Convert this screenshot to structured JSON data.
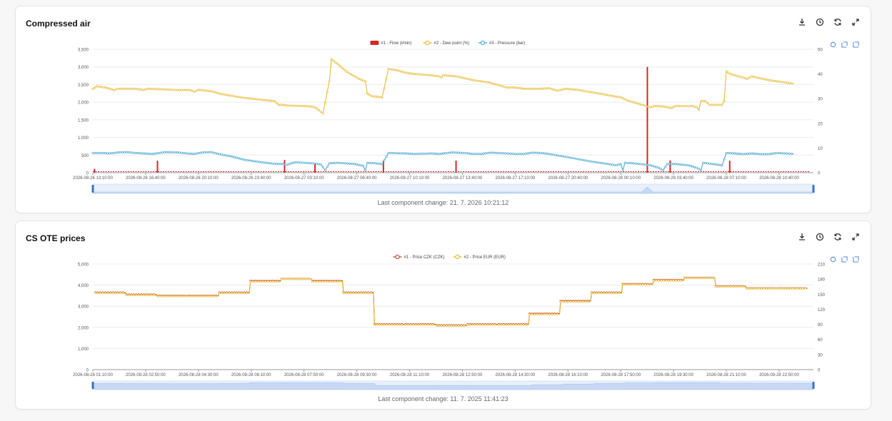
{
  "cards": [
    {
      "title": "Compressed air",
      "footer": "Last component change: 21. 7. 2026 10:21:12"
    },
    {
      "title": "CS OTE prices",
      "footer": "Last component change: 11. 7. 2025 11:41:23"
    }
  ],
  "toolbar_icons": [
    "download-icon",
    "history-icon",
    "refresh-icon",
    "fullscreen-icon"
  ],
  "mini_tool_icons": [
    "restore-icon",
    "zoom-icon",
    "zoom-back-icon"
  ],
  "chart_data": [
    {
      "type": "bar-line",
      "title": "Compressed air",
      "legend_position": "top-center",
      "grid": true,
      "x_ticks": [
        "2026-08-26 13:10:00",
        "2026-08-26 16:40:00",
        "2026-08-26 20:10:00",
        "2026-08-26 23:40:00",
        "2026-08-27 03:10:00",
        "2026-08-27 06:40:00",
        "2026-08-27 10:10:00",
        "2026-08-27 13:40:00",
        "2026-08-27 17:10:00",
        "2026-08-27 20:40:00",
        "2026-08-28 00:10:00",
        "2026-08-28 03:40:00",
        "2026-08-28 07:10:00",
        "2026-08-28 10:40:00"
      ],
      "y_left_ticks": [
        "0",
        "500",
        "1,000",
        "1,500",
        "2,000",
        "2,500",
        "3,000",
        "3,500"
      ],
      "y_left_range": [
        0,
        3500
      ],
      "y_right_ticks": [
        "0",
        "10",
        "20",
        "30",
        "40",
        "50"
      ],
      "y_right_range": [
        0,
        50
      ],
      "series": [
        {
          "name": "#1 - Flow (l/min)",
          "kind": "bar",
          "axis": "left",
          "color": "#d62728",
          "spikes": [
            [
              0.004,
              110
            ],
            [
              0.153,
              340
            ],
            [
              0.454,
              360
            ],
            [
              0.526,
              280
            ],
            [
              0.688,
              340
            ],
            [
              0.86,
              340
            ],
            [
              1.313,
              3000
            ],
            [
              1.367,
              350
            ],
            [
              1.508,
              340
            ]
          ],
          "baseline": 30
        },
        {
          "name": "#2 - Dew point (%)",
          "kind": "line",
          "axis": "right",
          "color": "#e6b422",
          "points": [
            [
              0,
              34
            ],
            [
              0.01,
              35
            ],
            [
              0.03,
              34.5
            ],
            [
              0.05,
              33.5
            ],
            [
              0.06,
              34
            ],
            [
              0.1,
              34
            ],
            [
              0.12,
              33.5
            ],
            [
              0.13,
              34
            ],
            [
              0.2,
              33.5
            ],
            [
              0.23,
              33.5
            ],
            [
              0.24,
              32.8
            ],
            [
              0.25,
              33.6
            ],
            [
              0.28,
              33
            ],
            [
              0.3,
              32
            ],
            [
              0.35,
              30.5
            ],
            [
              0.4,
              29.5
            ],
            [
              0.43,
              29
            ],
            [
              0.44,
              27.5
            ],
            [
              0.45,
              27.5
            ],
            [
              0.46,
              27.2
            ],
            [
              0.5,
              27
            ],
            [
              0.52,
              26.8
            ],
            [
              0.53,
              26
            ],
            [
              0.545,
              24
            ],
            [
              0.56,
              37
            ],
            [
              0.565,
              46
            ],
            [
              0.58,
              44
            ],
            [
              0.6,
              41
            ],
            [
              0.63,
              38
            ],
            [
              0.645,
              37
            ],
            [
              0.65,
              32
            ],
            [
              0.66,
              31
            ],
            [
              0.685,
              30.5
            ],
            [
              0.7,
              42
            ],
            [
              0.72,
              41.5
            ],
            [
              0.74,
              40.5
            ],
            [
              0.76,
              40
            ],
            [
              0.8,
              39.5
            ],
            [
              0.82,
              39
            ],
            [
              0.825,
              38.5
            ],
            [
              0.83,
              39.5
            ],
            [
              0.86,
              39
            ],
            [
              0.9,
              37.5
            ],
            [
              0.94,
              36.5
            ],
            [
              0.96,
              35.5
            ],
            [
              0.98,
              34.5
            ],
            [
              1.0,
              34.5
            ],
            [
              1.02,
              34
            ],
            [
              1.06,
              34
            ],
            [
              1.08,
              34.2
            ],
            [
              1.1,
              33.2
            ],
            [
              1.12,
              34
            ],
            [
              1.15,
              33.5
            ],
            [
              1.2,
              32
            ],
            [
              1.25,
              30.5
            ],
            [
              1.27,
              29
            ],
            [
              1.28,
              28.5
            ],
            [
              1.31,
              27
            ],
            [
              1.32,
              26.5
            ],
            [
              1.33,
              27
            ],
            [
              1.35,
              26.8
            ],
            [
              1.37,
              26.2
            ],
            [
              1.38,
              27
            ],
            [
              1.42,
              27
            ],
            [
              1.43,
              26.5
            ],
            [
              1.435,
              25.5
            ],
            [
              1.44,
              29
            ],
            [
              1.45,
              29
            ],
            [
              1.46,
              27.5
            ],
            [
              1.47,
              27.5
            ],
            [
              1.49,
              27.5
            ],
            [
              1.495,
              29
            ],
            [
              1.5,
              41
            ],
            [
              1.51,
              40
            ],
            [
              1.53,
              39
            ],
            [
              1.55,
              38
            ],
            [
              1.56,
              39
            ],
            [
              1.6,
              37.5
            ],
            [
              1.62,
              37
            ],
            [
              1.64,
              36.5
            ],
            [
              1.66,
              36
            ]
          ]
        },
        {
          "name": "#3 - Pressure (bar)",
          "kind": "line",
          "axis": "right",
          "color": "#3aa0cc",
          "points": [
            [
              0,
              8
            ],
            [
              0.02,
              8
            ],
            [
              0.04,
              7.8
            ],
            [
              0.06,
              8.2
            ],
            [
              0.08,
              8.3
            ],
            [
              0.1,
              8
            ],
            [
              0.12,
              7.8
            ],
            [
              0.14,
              7.6
            ],
            [
              0.15,
              7.8
            ],
            [
              0.17,
              8.3
            ],
            [
              0.2,
              8.2
            ],
            [
              0.23,
              7.7
            ],
            [
              0.24,
              7.6
            ],
            [
              0.26,
              8.2
            ],
            [
              0.28,
              8.3
            ],
            [
              0.3,
              7.5
            ],
            [
              0.33,
              6.5
            ],
            [
              0.36,
              5.2
            ],
            [
              0.4,
              4.2
            ],
            [
              0.43,
              3.6
            ],
            [
              0.45,
              3.5
            ],
            [
              0.46,
              3.2
            ],
            [
              0.47,
              3.8
            ],
            [
              0.48,
              4.2
            ],
            [
              0.52,
              3.8
            ],
            [
              0.54,
              3.3
            ],
            [
              0.55,
              1
            ],
            [
              0.56,
              3.8
            ],
            [
              0.58,
              4
            ],
            [
              0.62,
              3.5
            ],
            [
              0.64,
              2.8
            ],
            [
              0.645,
              1
            ],
            [
              0.65,
              4
            ],
            [
              0.67,
              3.8
            ],
            [
              0.685,
              3.5
            ],
            [
              0.7,
              8
            ],
            [
              0.74,
              7.8
            ],
            [
              0.76,
              7.6
            ],
            [
              0.8,
              7.8
            ],
            [
              0.82,
              7.6
            ],
            [
              0.83,
              7.8
            ],
            [
              0.85,
              8.2
            ],
            [
              0.88,
              8
            ],
            [
              0.9,
              7.6
            ],
            [
              0.92,
              7.6
            ],
            [
              0.94,
              8.1
            ],
            [
              0.96,
              8
            ],
            [
              1.0,
              7.6
            ],
            [
              1.02,
              7.6
            ],
            [
              1.04,
              8.1
            ],
            [
              1.06,
              8
            ],
            [
              1.08,
              7.6
            ],
            [
              1.1,
              7
            ],
            [
              1.14,
              5.8
            ],
            [
              1.18,
              4.5
            ],
            [
              1.22,
              3.5
            ],
            [
              1.24,
              3
            ],
            [
              1.25,
              3.5
            ],
            [
              1.255,
              1
            ],
            [
              1.26,
              4
            ],
            [
              1.28,
              3.8
            ],
            [
              1.32,
              3
            ],
            [
              1.34,
              2
            ],
            [
              1.35,
              1
            ],
            [
              1.36,
              3.5
            ],
            [
              1.38,
              3.5
            ],
            [
              1.41,
              3
            ],
            [
              1.43,
              2
            ],
            [
              1.44,
              1
            ],
            [
              1.445,
              4
            ],
            [
              1.46,
              3.7
            ],
            [
              1.49,
              3
            ],
            [
              1.5,
              8
            ],
            [
              1.52,
              7.8
            ],
            [
              1.54,
              7.5
            ],
            [
              1.56,
              7.8
            ],
            [
              1.58,
              7.5
            ],
            [
              1.6,
              7.5
            ],
            [
              1.62,
              8
            ],
            [
              1.66,
              7.6
            ]
          ]
        }
      ]
    },
    {
      "type": "line",
      "title": "CS OTE prices",
      "legend_position": "top-center",
      "grid": true,
      "x_ticks": [
        "2026-08-28 01:10:00",
        "2026-08-28 02:50:00",
        "2026-08-28 04:30:00",
        "2026-08-28 06:10:00",
        "2026-08-28 07:50:00",
        "2026-08-28 09:30:00",
        "2026-08-28 11:10:00",
        "2026-08-28 12:50:00",
        "2026-08-28 14:30:00",
        "2026-08-28 16:10:00",
        "2026-08-28 17:50:00",
        "2026-08-28 19:30:00",
        "2026-08-28 21:10:00",
        "2026-08-28 22:50:00"
      ],
      "y_left_ticks": [
        "0",
        "1,000",
        "2,000",
        "3,000",
        "4,000",
        "5,000"
      ],
      "y_left_range": [
        0,
        5000
      ],
      "y_right_ticks": [
        "0",
        "30",
        "60",
        "90",
        "120",
        "150",
        "180",
        "210"
      ],
      "y_right_range": [
        0,
        210
      ],
      "series": [
        {
          "name": "#1 - Price CZK (CZK)",
          "kind": "line",
          "axis": "left",
          "color": "#c0392b",
          "steps": [
            3650,
            3550,
            3500,
            3500,
            3650,
            4200,
            4300,
            4200,
            3650,
            2150,
            2150,
            2100,
            2150,
            2150,
            2650,
            3250,
            3650,
            4050,
            4250,
            4350,
            3950,
            3850,
            3850
          ]
        },
        {
          "name": "#2 - Price EUR (EUR)",
          "kind": "line",
          "axis": "right",
          "color": "#e6b422",
          "steps": [
            153,
            149,
            147,
            147,
            153,
            176,
            181,
            176,
            153,
            90,
            90,
            88,
            90,
            90,
            111,
            136,
            153,
            170,
            178,
            183,
            166,
            162,
            162
          ]
        }
      ]
    }
  ]
}
